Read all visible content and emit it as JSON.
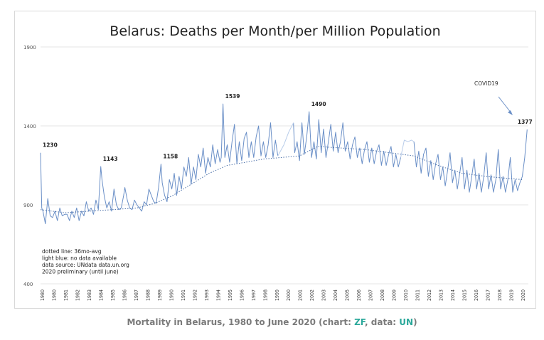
{
  "chart_data": {
    "type": "line",
    "title": "Belarus: Deaths per Month/per Million Population",
    "xlabel": "",
    "ylabel": "",
    "xlim": [
      1980,
      2020.5
    ],
    "ylim": [
      400,
      1900
    ],
    "y_ticks": [
      "400",
      "900",
      "1400",
      "1900"
    ],
    "y_tick_values": [
      400,
      900,
      1400,
      1900
    ],
    "x_ticks": [
      "1980",
      "1980",
      "1981",
      "1982",
      "1983",
      "1984",
      "1985",
      "1986",
      "1987",
      "1988",
      "1989",
      "1990",
      "1991",
      "1992",
      "1993",
      "1994",
      "1995",
      "1996",
      "1997",
      "1998",
      "1999",
      "2000",
      "2001",
      "2002",
      "2003",
      "2004",
      "2005",
      "2006",
      "2007",
      "2008",
      "2009",
      "2010",
      "2011",
      "2012",
      "2013",
      "2014",
      "2015",
      "2016",
      "2017",
      "2018",
      "2019",
      "2020"
    ],
    "gridlines": true,
    "series": [
      {
        "name": "monthly deaths per million",
        "style": "solid",
        "x": [
          1980.0,
          1980.1,
          1980.2,
          1980.4,
          1980.6,
          1980.8,
          1981.0,
          1981.2,
          1981.4,
          1981.6,
          1981.8,
          1982.0,
          1982.2,
          1982.4,
          1982.6,
          1982.8,
          1983.0,
          1983.2,
          1983.4,
          1983.6,
          1983.8,
          1984.0,
          1984.2,
          1984.4,
          1984.6,
          1984.8,
          1985.0,
          1985.1,
          1985.3,
          1985.5,
          1985.7,
          1985.9,
          1986.1,
          1986.3,
          1986.5,
          1986.7,
          1986.9,
          1987.0,
          1987.2,
          1987.4,
          1987.6,
          1987.8,
          1988.0,
          1988.2,
          1988.4,
          1988.6,
          1988.8,
          1989.0,
          1989.2,
          1989.4,
          1989.6,
          1989.8,
          1990.0,
          1990.1,
          1990.3,
          1990.5,
          1990.7,
          1990.9,
          1991.1,
          1991.3,
          1991.5,
          1991.7,
          1991.9,
          1992.1,
          1992.3,
          1992.5,
          1992.7,
          1992.9,
          1993.1,
          1993.3,
          1993.5,
          1993.7,
          1993.9,
          1994.1,
          1994.3,
          1994.5,
          1994.7,
          1994.9,
          1995.0,
          1995.15,
          1995.3,
          1995.5,
          1995.7,
          1995.9,
          1996.1,
          1996.3,
          1996.5,
          1996.7,
          1996.9,
          1997.1,
          1997.3,
          1997.5,
          1997.7,
          1997.9,
          1998.1,
          1998.3,
          1998.5,
          1998.7,
          1998.9,
          1999.1,
          1999.3,
          1999.5,
          1999.7
        ],
        "values": [
          1230,
          880,
          860,
          780,
          940,
          830,
          820,
          860,
          800,
          880,
          830,
          840,
          840,
          800,
          860,
          820,
          880,
          800,
          860,
          830,
          920,
          860,
          880,
          840,
          930,
          870,
          1143,
          1060,
          950,
          880,
          920,
          860,
          1000,
          900,
          870,
          880,
          960,
          1010,
          930,
          880,
          870,
          930,
          900,
          880,
          860,
          920,
          900,
          1000,
          960,
          920,
          910,
          1010,
          1158,
          1040,
          960,
          920,
          1060,
          1000,
          1100,
          960,
          1080,
          1000,
          1140,
          1080,
          1200,
          1030,
          1140,
          1060,
          1220,
          1140,
          1260,
          1100,
          1200,
          1140,
          1280,
          1160,
          1250,
          1170,
          1200,
          1539,
          1200,
          1280,
          1170,
          1300,
          1410,
          1160,
          1300,
          1180,
          1320,
          1360,
          1200,
          1300,
          1200,
          1330,
          1400,
          1210,
          1300,
          1200,
          1280,
          1420,
          1200,
          1310,
          1210
        ]
      },
      {
        "name": "monthly deaths per million (continued)",
        "style": "solid",
        "x": [
          2001.0,
          2001.1,
          2001.3,
          2001.5,
          2001.7,
          2001.9,
          2002.1,
          2002.3,
          2002.5,
          2002.7,
          2002.9,
          2003.1,
          2003.3,
          2003.5,
          2003.7,
          2003.9,
          2004.1,
          2004.3,
          2004.5,
          2004.7,
          2004.9,
          2005.1,
          2005.3,
          2005.5,
          2005.7,
          2005.9,
          2006.1,
          2006.3,
          2006.5,
          2006.7,
          2006.9,
          2007.1,
          2007.3,
          2007.5,
          2007.7,
          2007.9,
          2008.1,
          2008.3,
          2008.5,
          2008.7,
          2008.9,
          2009.1,
          2009.3,
          2009.5,
          2009.7,
          2009.9
        ],
        "values": [
          1420,
          1230,
          1300,
          1180,
          1420,
          1220,
          1330,
          1490,
          1200,
          1300,
          1190,
          1440,
          1230,
          1380,
          1200,
          1300,
          1410,
          1240,
          1360,
          1230,
          1300,
          1420,
          1240,
          1300,
          1190,
          1280,
          1330,
          1200,
          1260,
          1160,
          1250,
          1300,
          1170,
          1260,
          1160,
          1240,
          1280,
          1150,
          1240,
          1150,
          1220,
          1270,
          1140,
          1220,
          1140,
          1200
        ]
      },
      {
        "name": "monthly deaths per million (recent)",
        "style": "solid",
        "x": [
          2011.0,
          2011.2,
          2011.4,
          2011.6,
          2011.8,
          2012.0,
          2012.2,
          2012.4,
          2012.6,
          2012.8,
          2013.0,
          2013.2,
          2013.4,
          2013.6,
          2013.8,
          2014.0,
          2014.2,
          2014.4,
          2014.6,
          2014.8,
          2015.0,
          2015.2,
          2015.4,
          2015.6,
          2015.8,
          2016.0,
          2016.2,
          2016.4,
          2016.6,
          2016.8,
          2017.0,
          2017.2,
          2017.4,
          2017.6,
          2017.8,
          2018.0,
          2018.2,
          2018.4,
          2018.6,
          2018.8,
          2019.0,
          2019.2,
          2019.4,
          2019.6,
          2019.8,
          2020.0,
          2020.2,
          2020.4
        ],
        "values": [
          1300,
          1140,
          1240,
          1100,
          1220,
          1260,
          1080,
          1180,
          1060,
          1160,
          1220,
          1060,
          1140,
          1020,
          1120,
          1230,
          1040,
          1120,
          1000,
          1100,
          1200,
          1000,
          1120,
          980,
          1080,
          1190,
          1000,
          1100,
          980,
          1080,
          1230,
          1000,
          1090,
          980,
          1060,
          1250,
          1000,
          1080,
          980,
          1060,
          1200,
          980,
          1060,
          990,
          1040,
          1080,
          1200,
          1377
        ]
      },
      {
        "name": "no data available",
        "style": "lightblue",
        "x": [
          1999.7,
          2000.2,
          2000.6,
          2001.0
        ],
        "values": [
          1210,
          1280,
          1360,
          1420
        ]
      },
      {
        "name": "no data available 2010",
        "style": "lightblue",
        "x": [
          2009.9,
          2010.2,
          2010.5,
          2010.8,
          2011.0
        ],
        "values": [
          1200,
          1310,
          1300,
          1310,
          1300
        ]
      },
      {
        "name": "36mo-avg",
        "style": "dotted",
        "x": [
          1980.0,
          1982.0,
          1984.0,
          1986.0,
          1988.0,
          1989.5,
          1991.0,
          1992.5,
          1994.0,
          1995.5,
          1997.0,
          1998.5,
          2000.0,
          2001.5,
          2003.0,
          2005.0,
          2007.0,
          2009.0,
          2011.0,
          2013.0,
          2015.0,
          2017.0,
          2018.5,
          2020.0
        ],
        "values": [
          870,
          850,
          860,
          870,
          880,
          910,
          960,
          1030,
          1100,
          1150,
          1170,
          1190,
          1200,
          1210,
          1270,
          1260,
          1250,
          1230,
          1210,
          1150,
          1100,
          1080,
          1070,
          1060
        ]
      }
    ],
    "annotations": [
      {
        "label": "1230",
        "x": 1980.0,
        "y": 1230
      },
      {
        "label": "1143",
        "x": 1985.0,
        "y": 1143
      },
      {
        "label": "1158",
        "x": 1990.0,
        "y": 1158
      },
      {
        "label": "1539",
        "x": 1995.15,
        "y": 1539
      },
      {
        "label": "1490",
        "x": 2002.3,
        "y": 1490
      },
      {
        "label": "1377",
        "x": 2020.4,
        "y": 1377
      }
    ],
    "covid_label": "COVID19",
    "notes": [
      "dotted line: 36mo-avg",
      "light blue: no  data available",
      "data source: UNdata data.un.org",
      "2020 preliminary (until june)"
    ]
  },
  "caption": {
    "prefix": "Mortality in Belarus, 1980 to June 2020 (chart: ",
    "chart_credit": "ZF",
    "middle": ", data: ",
    "data_credit": "UN",
    "suffix": ")"
  },
  "colors": {
    "line": "#6a8fc7",
    "light_line": "#b9cdea",
    "avg_line": "#4a6fa8",
    "grid": "#e4e4e4",
    "arrow": "#6a8fc7",
    "accent": "#2aa89a"
  }
}
